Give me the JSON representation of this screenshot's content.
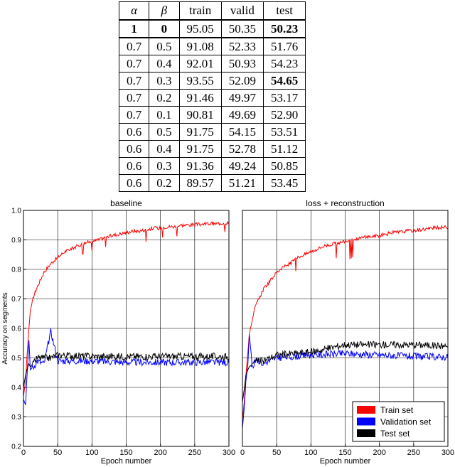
{
  "table": {
    "headers": [
      "α",
      "β",
      "train",
      "valid",
      "test"
    ],
    "rows": [
      {
        "alpha": "1",
        "beta": "0",
        "train": "95.05",
        "valid": "50.35",
        "test": "50.23"
      },
      {
        "alpha": "0.7",
        "beta": "0.5",
        "train": "91.08",
        "valid": "52.33",
        "test": "51.76"
      },
      {
        "alpha": "0.7",
        "beta": "0.4",
        "train": "92.01",
        "valid": "50.93",
        "test": "54.23"
      },
      {
        "alpha": "0.7",
        "beta": "0.3",
        "train": "93.55",
        "valid": "52.09",
        "test": "54.65"
      },
      {
        "alpha": "0.7",
        "beta": "0.2",
        "train": "91.46",
        "valid": "49.97",
        "test": "53.17"
      },
      {
        "alpha": "0.7",
        "beta": "0.1",
        "train": "90.81",
        "valid": "49.69",
        "test": "52.90"
      },
      {
        "alpha": "0.6",
        "beta": "0.5",
        "train": "91.75",
        "valid": "54.15",
        "test": "53.51"
      },
      {
        "alpha": "0.6",
        "beta": "0.4",
        "train": "91.75",
        "valid": "52.78",
        "test": "51.12"
      },
      {
        "alpha": "0.6",
        "beta": "0.3",
        "train": "91.36",
        "valid": "49.24",
        "test": "50.85"
      },
      {
        "alpha": "0.6",
        "beta": "0.2",
        "train": "89.57",
        "valid": "51.21",
        "test": "53.45"
      }
    ]
  },
  "chart_data": [
    {
      "type": "line",
      "title": "baseline",
      "xlabel": "Epoch number",
      "ylabel": "Accuracy on segments",
      "xlim": [
        0,
        300
      ],
      "ylim": [
        0.2,
        1.0
      ],
      "xticks": [
        "0",
        "50",
        "100",
        "150",
        "200",
        "250",
        "300"
      ],
      "yticks": [
        "0.2",
        "0.3",
        "0.4",
        "0.5",
        "0.6",
        "0.7",
        "0.8",
        "0.9",
        "1.0"
      ],
      "grid": true,
      "series": [
        {
          "name": "Train set",
          "color": "#ff0000",
          "x": [
            0,
            3,
            5,
            8,
            10,
            15,
            20,
            30,
            40,
            50,
            60,
            70,
            80,
            90,
            100,
            110,
            120,
            130,
            140,
            150,
            160,
            170,
            180,
            190,
            200,
            210,
            220,
            230,
            240,
            250,
            260,
            270,
            280,
            290,
            300
          ],
          "y": [
            0.37,
            0.42,
            0.5,
            0.6,
            0.66,
            0.71,
            0.74,
            0.79,
            0.82,
            0.84,
            0.86,
            0.87,
            0.88,
            0.89,
            0.895,
            0.9,
            0.91,
            0.915,
            0.92,
            0.925,
            0.93,
            0.93,
            0.935,
            0.94,
            0.94,
            0.945,
            0.945,
            0.95,
            0.95,
            0.952,
            0.953,
            0.955,
            0.955,
            0.957,
            0.958
          ]
        },
        {
          "name": "Validation set",
          "color": "#0000ff",
          "x": [
            0,
            3,
            5,
            8,
            10,
            15,
            20,
            30,
            40,
            50,
            100,
            150,
            200,
            250,
            300
          ],
          "y": [
            0.36,
            0.34,
            0.43,
            0.56,
            0.46,
            0.47,
            0.49,
            0.48,
            0.59,
            0.49,
            0.49,
            0.485,
            0.485,
            0.485,
            0.485
          ]
        },
        {
          "name": "Test set",
          "color": "#000000",
          "x": [
            0,
            3,
            5,
            8,
            10,
            15,
            20,
            30,
            40,
            50,
            100,
            150,
            200,
            250,
            300
          ],
          "y": [
            0.4,
            0.44,
            0.46,
            0.48,
            0.47,
            0.48,
            0.5,
            0.5,
            0.5,
            0.51,
            0.505,
            0.505,
            0.505,
            0.505,
            0.505
          ]
        }
      ]
    },
    {
      "type": "line",
      "title": "loss + reconstruction",
      "xlabel": "Epoch number",
      "ylabel": "",
      "xlim": [
        0,
        300
      ],
      "ylim": [
        0.2,
        1.0
      ],
      "xticks": [
        "0",
        "50",
        "100",
        "150",
        "200",
        "250",
        "300"
      ],
      "yticks": [],
      "grid": true,
      "legend": "bottom-right",
      "series": [
        {
          "name": "Train set",
          "color": "#ff0000",
          "x": [
            0,
            3,
            5,
            8,
            10,
            15,
            20,
            30,
            40,
            50,
            60,
            70,
            80,
            90,
            100,
            110,
            120,
            130,
            140,
            150,
            160,
            170,
            180,
            190,
            200,
            210,
            220,
            230,
            240,
            250,
            260,
            270,
            280,
            290,
            300
          ],
          "y": [
            0.29,
            0.36,
            0.44,
            0.52,
            0.58,
            0.64,
            0.68,
            0.73,
            0.76,
            0.79,
            0.81,
            0.82,
            0.84,
            0.85,
            0.86,
            0.87,
            0.88,
            0.885,
            0.89,
            0.895,
            0.9,
            0.905,
            0.91,
            0.912,
            0.915,
            0.92,
            0.925,
            0.927,
            0.93,
            0.932,
            0.935,
            0.938,
            0.94,
            0.942,
            0.944
          ]
        },
        {
          "name": "Validation set",
          "color": "#0000ff",
          "x": [
            0,
            3,
            5,
            8,
            10,
            15,
            20,
            30,
            40,
            50,
            100,
            150,
            200,
            250,
            300
          ],
          "y": [
            0.26,
            0.34,
            0.42,
            0.48,
            0.58,
            0.46,
            0.5,
            0.48,
            0.49,
            0.5,
            0.51,
            0.515,
            0.51,
            0.505,
            0.503
          ]
        },
        {
          "name": "Test set",
          "color": "#000000",
          "x": [
            0,
            3,
            5,
            8,
            10,
            15,
            20,
            30,
            40,
            50,
            100,
            150,
            200,
            250,
            300
          ],
          "y": [
            0.35,
            0.4,
            0.44,
            0.46,
            0.47,
            0.48,
            0.49,
            0.49,
            0.5,
            0.51,
            0.52,
            0.545,
            0.545,
            0.545,
            0.54
          ]
        }
      ]
    }
  ]
}
